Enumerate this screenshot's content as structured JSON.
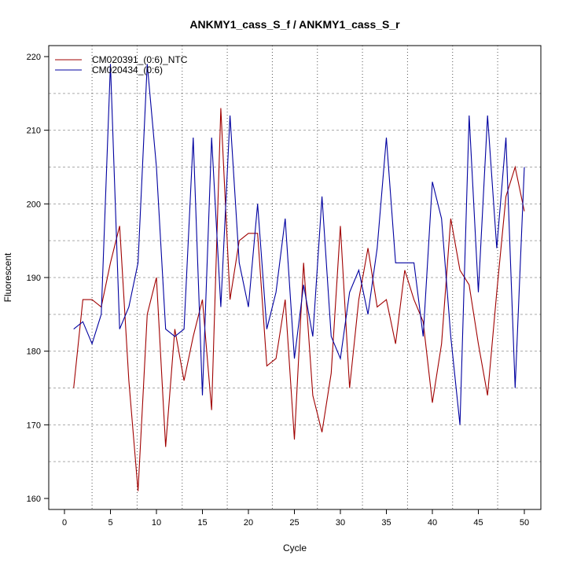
{
  "chart_data": {
    "type": "line",
    "title": "ANKMY1_cass_S_f / ANKMY1_cass_S_r",
    "xlabel": "Cycle",
    "ylabel": "Fluorescent",
    "xlim": [
      0,
      50
    ],
    "ylim": [
      160,
      220
    ],
    "xticks": [
      0,
      5,
      10,
      15,
      20,
      25,
      30,
      35,
      40,
      45,
      50
    ],
    "yticks": [
      160,
      170,
      180,
      190,
      200,
      210,
      220
    ],
    "ygrid": [
      165,
      170,
      175,
      180,
      185,
      190,
      195,
      200,
      205,
      210,
      215
    ],
    "xgrid": [
      3,
      7.9,
      12.8,
      17.7,
      22.6,
      27.5,
      32.4,
      37.3,
      42.2,
      47.1
    ],
    "legend_position": "top-left",
    "x": [
      1,
      2,
      3,
      4,
      5,
      6,
      7,
      8,
      9,
      10,
      11,
      12,
      13,
      14,
      15,
      16,
      17,
      18,
      19,
      20,
      21,
      22,
      23,
      24,
      25,
      26,
      27,
      28,
      29,
      30,
      31,
      32,
      33,
      34,
      35,
      36,
      37,
      38,
      39,
      40,
      41,
      42,
      43,
      44,
      45,
      46,
      47,
      48,
      49,
      50
    ],
    "series": [
      {
        "name": "CM020391_(0:6)_NTC",
        "color": "#a00000",
        "values": [
          175,
          187,
          187,
          186,
          192,
          197,
          176,
          161,
          185,
          190,
          167,
          183,
          176,
          182,
          187,
          172,
          213,
          187,
          195,
          196,
          196,
          178,
          179,
          187,
          168,
          192,
          174,
          169,
          177,
          197,
          175,
          187,
          194,
          186,
          187,
          181,
          191,
          187,
          184,
          173,
          181,
          198,
          191,
          189,
          181,
          174,
          188,
          201,
          205,
          199
        ]
      },
      {
        "name": "CM020434_(0:6)",
        "color": "#0000a0",
        "values": [
          183,
          184,
          181,
          185,
          219,
          183,
          186,
          192,
          219,
          205,
          183,
          182,
          183,
          209,
          174,
          209,
          186,
          212,
          192,
          186,
          200,
          183,
          188,
          198,
          179,
          189,
          182,
          201,
          182,
          179,
          188,
          191,
          185,
          194,
          209,
          192,
          192,
          192,
          182,
          203,
          198,
          182,
          170,
          212,
          188,
          212,
          194,
          209,
          175,
          205
        ]
      }
    ]
  }
}
